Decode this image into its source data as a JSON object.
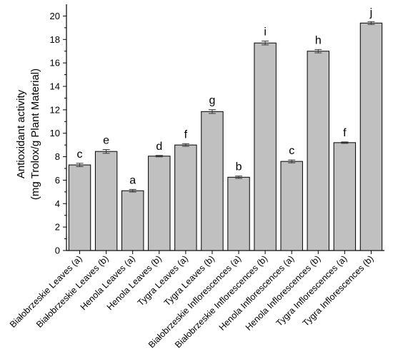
{
  "chart_data": {
    "type": "bar",
    "ylabel_line1": "Antioxidant activity",
    "ylabel_line2": "(mg Trolox/g Plant Material)",
    "xlabel": "",
    "ylim": [
      0,
      21
    ],
    "yticks": [
      0,
      2,
      4,
      6,
      8,
      10,
      12,
      14,
      16,
      18,
      20
    ],
    "categories": [
      "Białobrzeskie Leaves (a)",
      "Białobrzeskie Leaves (b)",
      "Henola Leaves (a)",
      "Henola Leaves (b)",
      "Tygra Leaves (a)",
      "Tygra Leaves (b)",
      "Białobrzeskie Inflorescences (a)",
      "Białobrzeskie Inflorescences (b)",
      "Henola Inflorescences (a)",
      "Henola Inflorescences (b)",
      "Tygra Inflorescences (a)",
      "Tygra Inflorescences (b)"
    ],
    "values": [
      7.3,
      8.45,
      5.1,
      8.05,
      9.0,
      11.85,
      6.25,
      17.7,
      7.6,
      17.0,
      9.2,
      19.4
    ],
    "errors": [
      0.08,
      0.1,
      0.05,
      0.0,
      0.05,
      0.1,
      0.04,
      0.1,
      0.06,
      0.08,
      0.0,
      0.06
    ],
    "significance_letters": [
      "c",
      "e",
      "a",
      "d",
      "f",
      "g",
      "b",
      "i",
      "c",
      "h",
      "f",
      "j"
    ],
    "bar_color": "#c0c0c0",
    "bar_edge_color": "#000000",
    "grid": false,
    "legend": "none"
  }
}
